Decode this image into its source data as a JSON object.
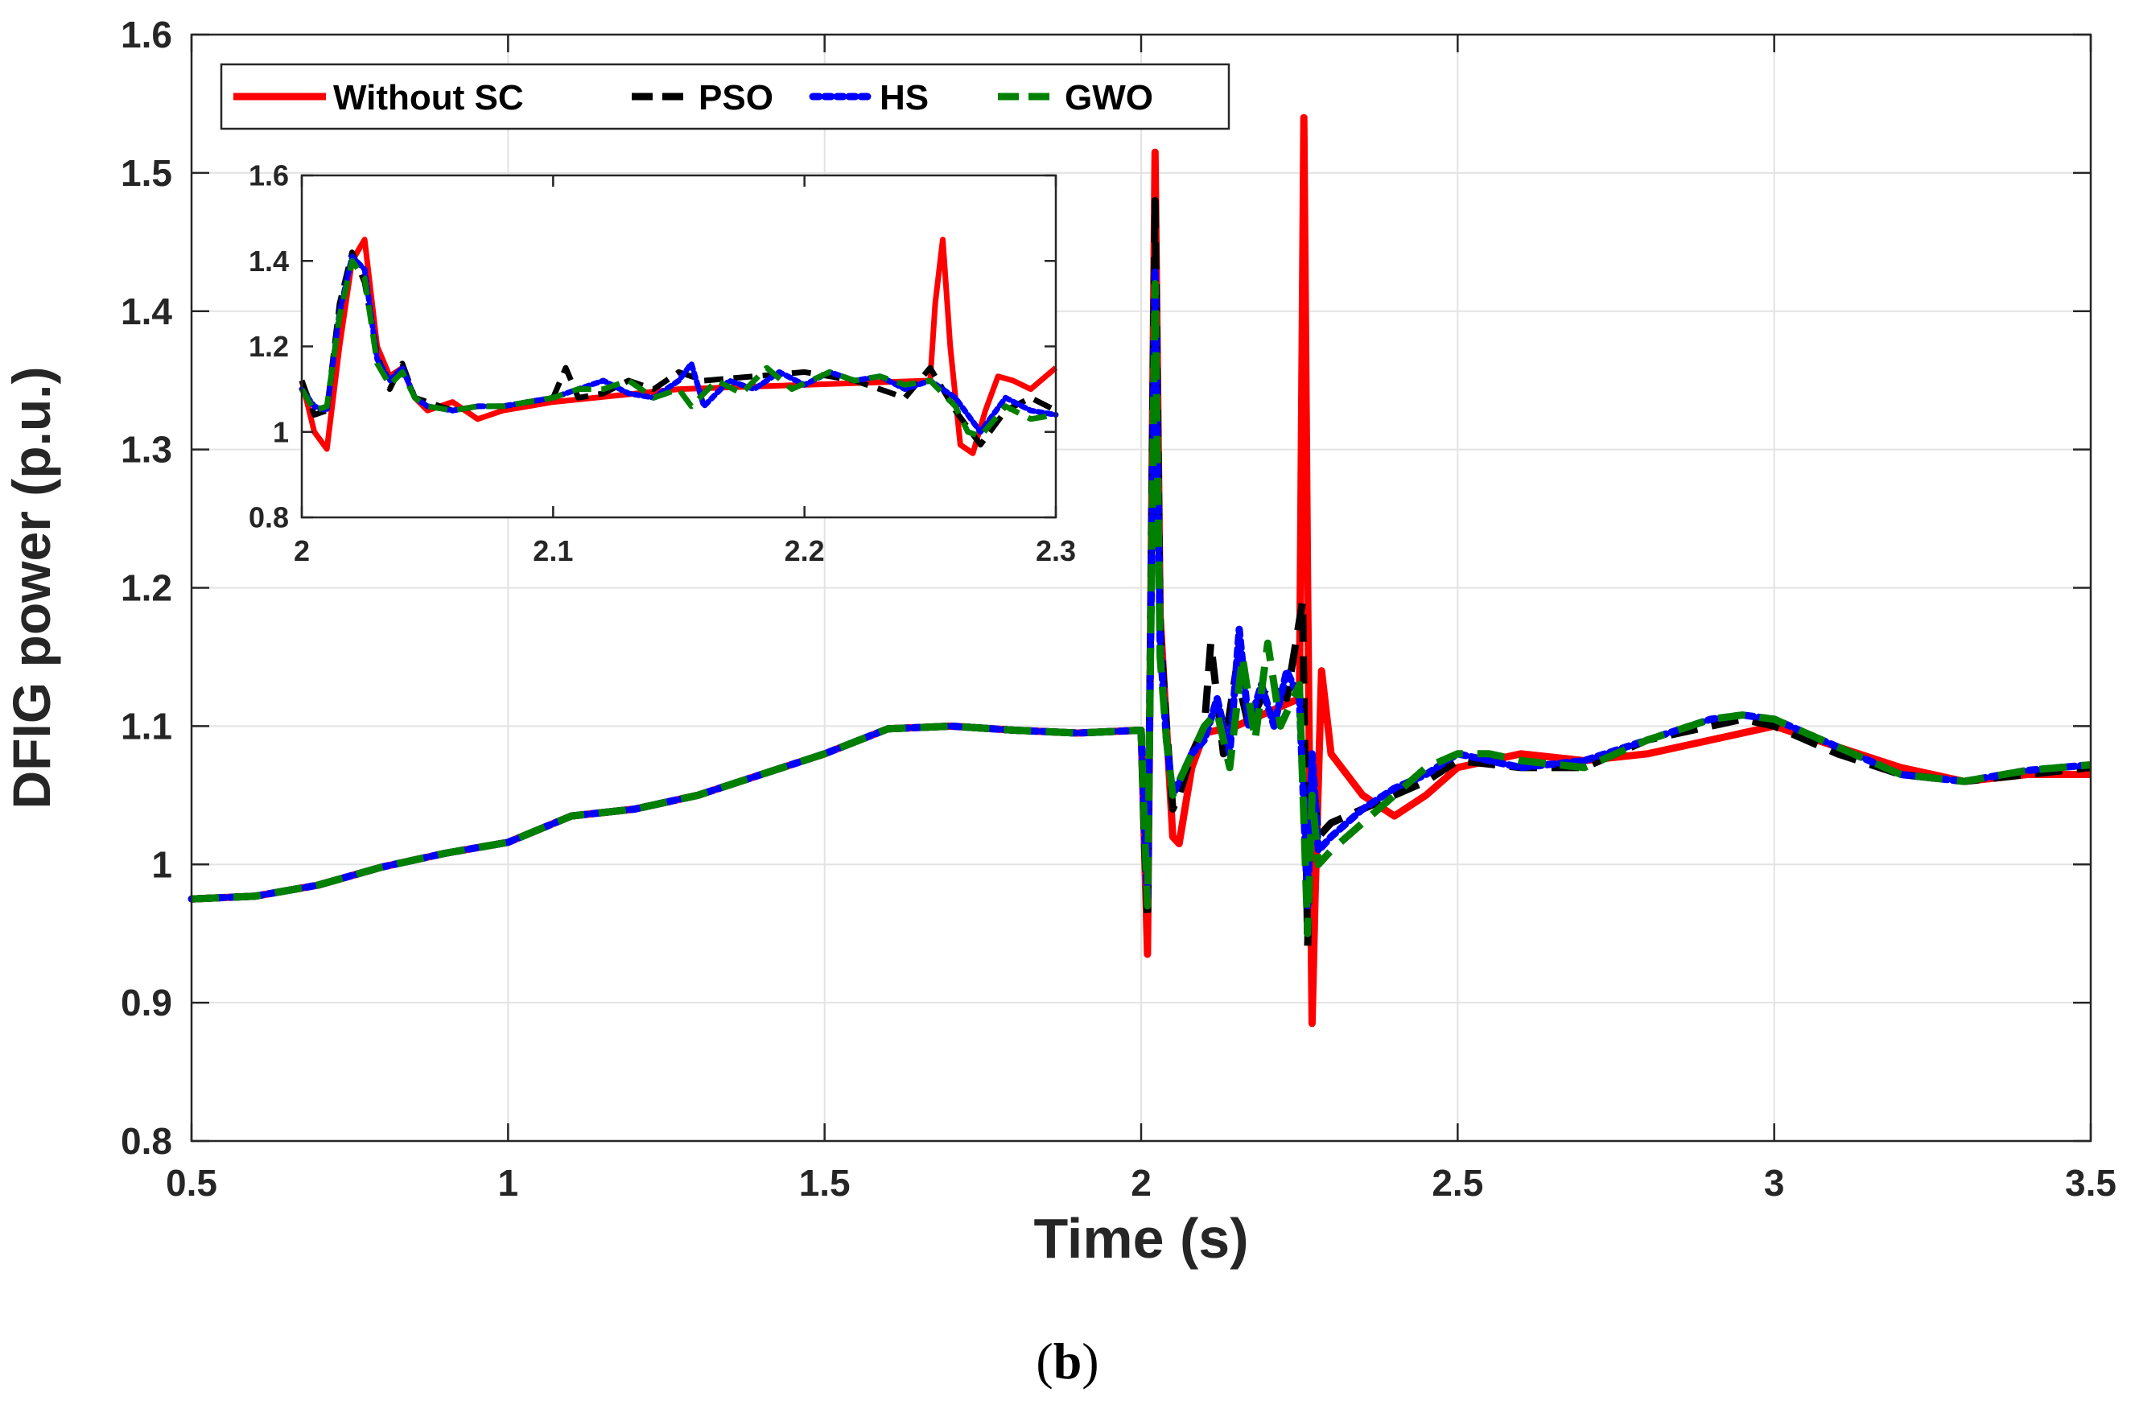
{
  "chart_data": [
    {
      "type": "line",
      "title": "",
      "xlabel": "Time (s)",
      "ylabel": "DFIG power (p.u.)",
      "xlim": [
        0.5,
        3.5
      ],
      "ylim": [
        0.8,
        1.6
      ],
      "xticks": [
        "0.5",
        "1",
        "1.5",
        "2",
        "2.5",
        "3",
        "3.5"
      ],
      "yticks": [
        "0.8",
        "0.9",
        "1",
        "1.1",
        "1.2",
        "1.3",
        "1.4",
        "1.5",
        "1.6"
      ],
      "grid": true,
      "legend_position": "top-left, horizontal",
      "series": [
        {
          "name": "Without SC",
          "color": "#ff0000",
          "line_style": "solid",
          "x": [
            0.5,
            0.6,
            0.7,
            0.8,
            0.9,
            1.0,
            1.1,
            1.2,
            1.3,
            1.4,
            1.5,
            1.6,
            1.7,
            1.8,
            1.9,
            2.0,
            2.005,
            2.01,
            2.022,
            2.03,
            2.04,
            2.05,
            2.06,
            2.08,
            2.1,
            2.15,
            2.2,
            2.25,
            2.257,
            2.263,
            2.27,
            2.275,
            2.285,
            2.3,
            2.35,
            2.4,
            2.45,
            2.5,
            2.6,
            2.7,
            2.8,
            2.9,
            3.0,
            3.1,
            3.2,
            3.3,
            3.4,
            3.5
          ],
          "y": [
            0.975,
            0.977,
            0.985,
            0.998,
            1.008,
            1.016,
            1.035,
            1.04,
            1.05,
            1.065,
            1.08,
            1.098,
            1.1,
            1.097,
            1.095,
            1.097,
            1.02,
            0.935,
            1.515,
            1.18,
            1.1,
            1.02,
            1.015,
            1.07,
            1.095,
            1.1,
            1.11,
            1.12,
            1.54,
            1.2,
            0.885,
            0.98,
            1.14,
            1.08,
            1.05,
            1.035,
            1.05,
            1.07,
            1.08,
            1.075,
            1.08,
            1.09,
            1.1,
            1.085,
            1.07,
            1.06,
            1.065,
            1.065
          ]
        },
        {
          "name": "PSO",
          "color": "#000000",
          "line_style": "dashed",
          "x": [
            0.5,
            0.6,
            0.7,
            0.8,
            0.9,
            1.0,
            1.1,
            1.2,
            1.3,
            1.4,
            1.5,
            1.6,
            1.7,
            1.8,
            1.9,
            2.0,
            2.005,
            2.01,
            2.022,
            2.03,
            2.04,
            2.05,
            2.06,
            2.08,
            2.1,
            2.11,
            2.13,
            2.15,
            2.17,
            2.2,
            2.23,
            2.255,
            2.263,
            2.27,
            2.28,
            2.3,
            2.35,
            2.4,
            2.45,
            2.5,
            2.6,
            2.7,
            2.8,
            2.9,
            2.95,
            3.0,
            3.1,
            3.2,
            3.3,
            3.4,
            3.5
          ],
          "y": [
            0.975,
            0.977,
            0.985,
            0.998,
            1.008,
            1.016,
            1.035,
            1.04,
            1.05,
            1.065,
            1.08,
            1.098,
            1.1,
            1.097,
            1.095,
            1.097,
            1.02,
            0.96,
            1.48,
            1.17,
            1.1,
            1.04,
            1.05,
            1.08,
            1.1,
            1.16,
            1.08,
            1.14,
            1.1,
            1.13,
            1.12,
            1.19,
            0.94,
            1.07,
            1.02,
            1.03,
            1.04,
            1.05,
            1.06,
            1.075,
            1.07,
            1.07,
            1.09,
            1.1,
            1.105,
            1.1,
            1.08,
            1.065,
            1.06,
            1.065,
            1.07
          ]
        },
        {
          "name": "HS",
          "color": "#0000ff",
          "line_style": "dotted",
          "x": [
            0.5,
            0.6,
            0.7,
            0.8,
            0.9,
            1.0,
            1.1,
            1.2,
            1.3,
            1.4,
            1.5,
            1.6,
            1.7,
            1.8,
            1.9,
            2.0,
            2.005,
            2.01,
            2.022,
            2.03,
            2.04,
            2.05,
            2.06,
            2.08,
            2.1,
            2.12,
            2.14,
            2.155,
            2.17,
            2.19,
            2.21,
            2.23,
            2.25,
            2.263,
            2.27,
            2.28,
            2.3,
            2.35,
            2.4,
            2.45,
            2.5,
            2.6,
            2.7,
            2.8,
            2.9,
            2.95,
            3.0,
            3.1,
            3.2,
            3.3,
            3.4,
            3.5
          ],
          "y": [
            0.975,
            0.977,
            0.985,
            0.998,
            1.008,
            1.016,
            1.035,
            1.04,
            1.05,
            1.065,
            1.08,
            1.098,
            1.1,
            1.097,
            1.095,
            1.097,
            1.03,
            0.97,
            1.43,
            1.16,
            1.09,
            1.05,
            1.06,
            1.08,
            1.09,
            1.12,
            1.08,
            1.17,
            1.1,
            1.13,
            1.1,
            1.14,
            1.12,
            0.97,
            1.08,
            1.01,
            1.02,
            1.04,
            1.055,
            1.065,
            1.08,
            1.07,
            1.075,
            1.09,
            1.105,
            1.108,
            1.105,
            1.085,
            1.065,
            1.06,
            1.068,
            1.072
          ]
        },
        {
          "name": "GWO",
          "color": "#008000",
          "line_style": "dashed",
          "x": [
            0.5,
            0.6,
            0.7,
            0.8,
            0.9,
            1.0,
            1.1,
            1.2,
            1.3,
            1.4,
            1.5,
            1.6,
            1.7,
            1.8,
            1.9,
            2.0,
            2.005,
            2.01,
            2.022,
            2.03,
            2.04,
            2.05,
            2.06,
            2.08,
            2.1,
            2.12,
            2.14,
            2.16,
            2.18,
            2.2,
            2.22,
            2.25,
            2.263,
            2.27,
            2.28,
            2.3,
            2.35,
            2.4,
            2.45,
            2.5,
            2.55,
            2.6,
            2.7,
            2.8,
            2.9,
            2.95,
            3.0,
            3.1,
            3.2,
            3.3,
            3.4,
            3.5
          ],
          "y": [
            0.975,
            0.977,
            0.985,
            0.998,
            1.008,
            1.016,
            1.035,
            1.04,
            1.05,
            1.065,
            1.08,
            1.098,
            1.1,
            1.097,
            1.095,
            1.097,
            1.03,
            0.97,
            1.42,
            1.15,
            1.09,
            1.05,
            1.06,
            1.08,
            1.1,
            1.11,
            1.07,
            1.15,
            1.09,
            1.16,
            1.1,
            1.13,
            0.95,
            1.05,
            1.0,
            1.01,
            1.03,
            1.05,
            1.07,
            1.08,
            1.08,
            1.075,
            1.07,
            1.09,
            1.105,
            1.108,
            1.105,
            1.085,
            1.065,
            1.06,
            1.068,
            1.072
          ]
        }
      ]
    },
    {
      "type": "line",
      "title": "",
      "xlabel": "",
      "ylabel": "",
      "xlim": [
        2.0,
        2.3
      ],
      "ylim": [
        0.8,
        1.6
      ],
      "xticks": [
        "2",
        "2.1",
        "2.2",
        "2.3"
      ],
      "yticks": [
        "0.8",
        "1",
        "1.2",
        "1.4",
        "1.6"
      ],
      "grid": false,
      "series": [
        {
          "color": "#ff0000",
          "line_style": "solid",
          "x": [
            2.0,
            2.005,
            2.01,
            2.015,
            2.02,
            2.025,
            2.03,
            2.035,
            2.04,
            2.045,
            2.05,
            2.06,
            2.07,
            2.08,
            2.09,
            2.1,
            2.15,
            2.2,
            2.25,
            2.252,
            2.255,
            2.258,
            2.262,
            2.267,
            2.272,
            2.277,
            2.283,
            2.29,
            2.3
          ],
          "y": [
            1.12,
            1.0,
            0.96,
            1.2,
            1.4,
            1.45,
            1.2,
            1.13,
            1.15,
            1.08,
            1.05,
            1.07,
            1.03,
            1.05,
            1.06,
            1.07,
            1.1,
            1.11,
            1.12,
            1.3,
            1.45,
            1.2,
            0.97,
            0.95,
            1.05,
            1.13,
            1.12,
            1.1,
            1.15
          ]
        },
        {
          "color": "#000000",
          "line_style": "dashed",
          "x": [
            2.0,
            2.005,
            2.01,
            2.015,
            2.02,
            2.025,
            2.03,
            2.035,
            2.04,
            2.045,
            2.05,
            2.06,
            2.07,
            2.08,
            2.09,
            2.1,
            2.105,
            2.11,
            2.12,
            2.13,
            2.14,
            2.15,
            2.16,
            2.18,
            2.2,
            2.22,
            2.24,
            2.25,
            2.255,
            2.26,
            2.27,
            2.28,
            2.29,
            2.3
          ],
          "y": [
            1.12,
            1.04,
            1.05,
            1.3,
            1.42,
            1.35,
            1.18,
            1.1,
            1.16,
            1.08,
            1.07,
            1.05,
            1.06,
            1.06,
            1.07,
            1.08,
            1.15,
            1.08,
            1.09,
            1.12,
            1.1,
            1.14,
            1.12,
            1.13,
            1.14,
            1.12,
            1.08,
            1.15,
            1.1,
            1.05,
            0.97,
            1.05,
            1.08,
            1.05
          ]
        },
        {
          "color": "#0000ff",
          "line_style": "dotted",
          "x": [
            2.0,
            2.005,
            2.01,
            2.015,
            2.02,
            2.025,
            2.03,
            2.035,
            2.04,
            2.045,
            2.05,
            2.06,
            2.07,
            2.08,
            2.09,
            2.1,
            2.11,
            2.12,
            2.13,
            2.14,
            2.15,
            2.155,
            2.16,
            2.17,
            2.18,
            2.19,
            2.2,
            2.21,
            2.22,
            2.23,
            2.24,
            2.25,
            2.26,
            2.27,
            2.28,
            2.29,
            2.3
          ],
          "y": [
            1.1,
            1.06,
            1.05,
            1.28,
            1.41,
            1.38,
            1.17,
            1.12,
            1.15,
            1.08,
            1.06,
            1.05,
            1.06,
            1.06,
            1.07,
            1.08,
            1.1,
            1.12,
            1.09,
            1.08,
            1.12,
            1.16,
            1.06,
            1.12,
            1.1,
            1.14,
            1.11,
            1.14,
            1.12,
            1.13,
            1.1,
            1.12,
            1.08,
            1.0,
            1.08,
            1.05,
            1.04
          ]
        },
        {
          "color": "#008000",
          "line_style": "dashed",
          "x": [
            2.0,
            2.005,
            2.01,
            2.015,
            2.02,
            2.025,
            2.03,
            2.035,
            2.04,
            2.045,
            2.05,
            2.06,
            2.07,
            2.08,
            2.09,
            2.1,
            2.11,
            2.12,
            2.13,
            2.14,
            2.15,
            2.155,
            2.165,
            2.175,
            2.185,
            2.195,
            2.21,
            2.22,
            2.23,
            2.24,
            2.25,
            2.26,
            2.265,
            2.27,
            2.28,
            2.29,
            2.3
          ],
          "y": [
            1.1,
            1.05,
            1.06,
            1.27,
            1.4,
            1.36,
            1.16,
            1.11,
            1.14,
            1.08,
            1.06,
            1.05,
            1.06,
            1.06,
            1.07,
            1.08,
            1.1,
            1.1,
            1.12,
            1.08,
            1.1,
            1.06,
            1.12,
            1.09,
            1.15,
            1.1,
            1.14,
            1.12,
            1.13,
            1.11,
            1.12,
            1.06,
            1.0,
            0.99,
            1.06,
            1.03,
            1.04
          ]
        }
      ]
    }
  ],
  "caption": {
    "label": "b",
    "open": "(",
    "close": ")"
  }
}
